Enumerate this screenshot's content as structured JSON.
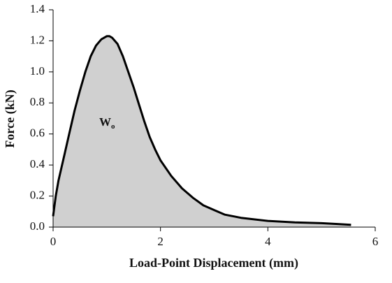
{
  "chart_data": {
    "type": "area",
    "xlabel": "Load-Point Displacement (mm)",
    "ylabel": "Force (kN)",
    "annotation": {
      "text": "W",
      "subscript": "o"
    },
    "x": [
      0,
      0.05,
      0.1,
      0.2,
      0.3,
      0.4,
      0.5,
      0.6,
      0.7,
      0.8,
      0.9,
      1.0,
      1.05,
      1.1,
      1.2,
      1.3,
      1.4,
      1.5,
      1.6,
      1.7,
      1.8,
      1.9,
      2.0,
      2.2,
      2.4,
      2.6,
      2.8,
      3.0,
      3.2,
      3.5,
      4.0,
      4.5,
      5.0,
      5.3,
      5.55
    ],
    "values": [
      0.07,
      0.2,
      0.3,
      0.45,
      0.6,
      0.75,
      0.88,
      1.0,
      1.1,
      1.17,
      1.21,
      1.23,
      1.23,
      1.22,
      1.18,
      1.1,
      1.0,
      0.9,
      0.79,
      0.68,
      0.58,
      0.5,
      0.43,
      0.33,
      0.25,
      0.19,
      0.14,
      0.11,
      0.08,
      0.06,
      0.04,
      0.03,
      0.025,
      0.02,
      0.015
    ],
    "color": "#000000",
    "fill": "#d0d0d0",
    "xlim": [
      0,
      6
    ],
    "xticks": [
      0,
      2,
      4,
      6
    ],
    "ylim": [
      0,
      1.4
    ],
    "yticks": [
      {
        "value": 0,
        "label": "0.0"
      },
      0.2,
      0.4,
      0.6,
      0.8,
      {
        "value": 1,
        "label": "1.0"
      },
      1.2,
      1.4
    ]
  }
}
